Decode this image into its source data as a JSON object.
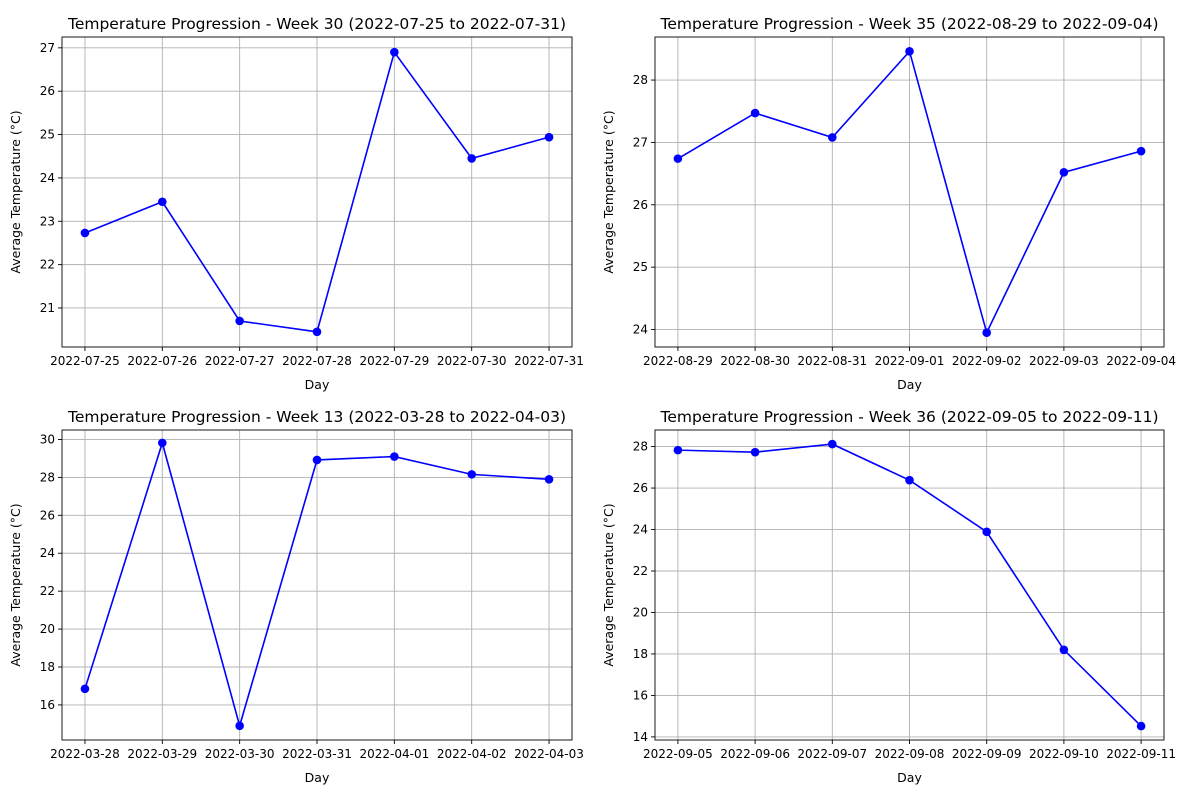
{
  "chart_data": [
    {
      "type": "line",
      "title": "Temperature Progression - Week 30 (2022-07-25 to 2022-07-31)",
      "xlabel": "Day",
      "ylabel": "Average Temperature (°C)",
      "categories": [
        "2022-07-25",
        "2022-07-26",
        "2022-07-27",
        "2022-07-28",
        "2022-07-29",
        "2022-07-30",
        "2022-07-31"
      ],
      "values": [
        22.73,
        23.45,
        20.7,
        20.45,
        26.9,
        24.45,
        24.94
      ],
      "ylim": [
        20.1,
        27.25
      ],
      "yticks": [
        21,
        22,
        23,
        24,
        25,
        26,
        27
      ],
      "color": "#0000ff",
      "grid": true
    },
    {
      "type": "line",
      "title": "Temperature Progression - Week 35 (2022-08-29 to 2022-09-04)",
      "xlabel": "Day",
      "ylabel": "Average Temperature (°C)",
      "categories": [
        "2022-08-29",
        "2022-08-30",
        "2022-08-31",
        "2022-09-01",
        "2022-09-02",
        "2022-09-03",
        "2022-09-04"
      ],
      "values": [
        26.74,
        27.47,
        27.08,
        28.46,
        23.95,
        26.52,
        26.86
      ],
      "ylim": [
        23.72,
        28.69
      ],
      "yticks": [
        24,
        25,
        26,
        27,
        28
      ],
      "color": "#0000ff",
      "grid": true
    },
    {
      "type": "line",
      "title": "Temperature Progression - Week 13 (2022-03-28 to 2022-04-03)",
      "xlabel": "Day",
      "ylabel": "Average Temperature (°C)",
      "categories": [
        "2022-03-28",
        "2022-03-29",
        "2022-03-30",
        "2022-03-31",
        "2022-04-01",
        "2022-04-02",
        "2022-04-03"
      ],
      "values": [
        16.85,
        29.82,
        14.9,
        28.92,
        29.1,
        28.16,
        27.9
      ],
      "ylim": [
        14.15,
        30.5
      ],
      "yticks": [
        16,
        18,
        20,
        22,
        24,
        26,
        28,
        30
      ],
      "color": "#0000ff",
      "grid": true
    },
    {
      "type": "line",
      "title": "Temperature Progression - Week 36 (2022-09-05 to 2022-09-11)",
      "xlabel": "Day",
      "ylabel": "Average Temperature (°C)",
      "categories": [
        "2022-09-05",
        "2022-09-06",
        "2022-09-07",
        "2022-09-08",
        "2022-09-09",
        "2022-09-10",
        "2022-09-11"
      ],
      "values": [
        27.83,
        27.73,
        28.12,
        26.38,
        23.89,
        18.2,
        14.52
      ],
      "ylim": [
        13.85,
        28.8
      ],
      "yticks": [
        14,
        16,
        18,
        20,
        22,
        24,
        26,
        28
      ],
      "color": "#0000ff",
      "grid": true
    }
  ]
}
